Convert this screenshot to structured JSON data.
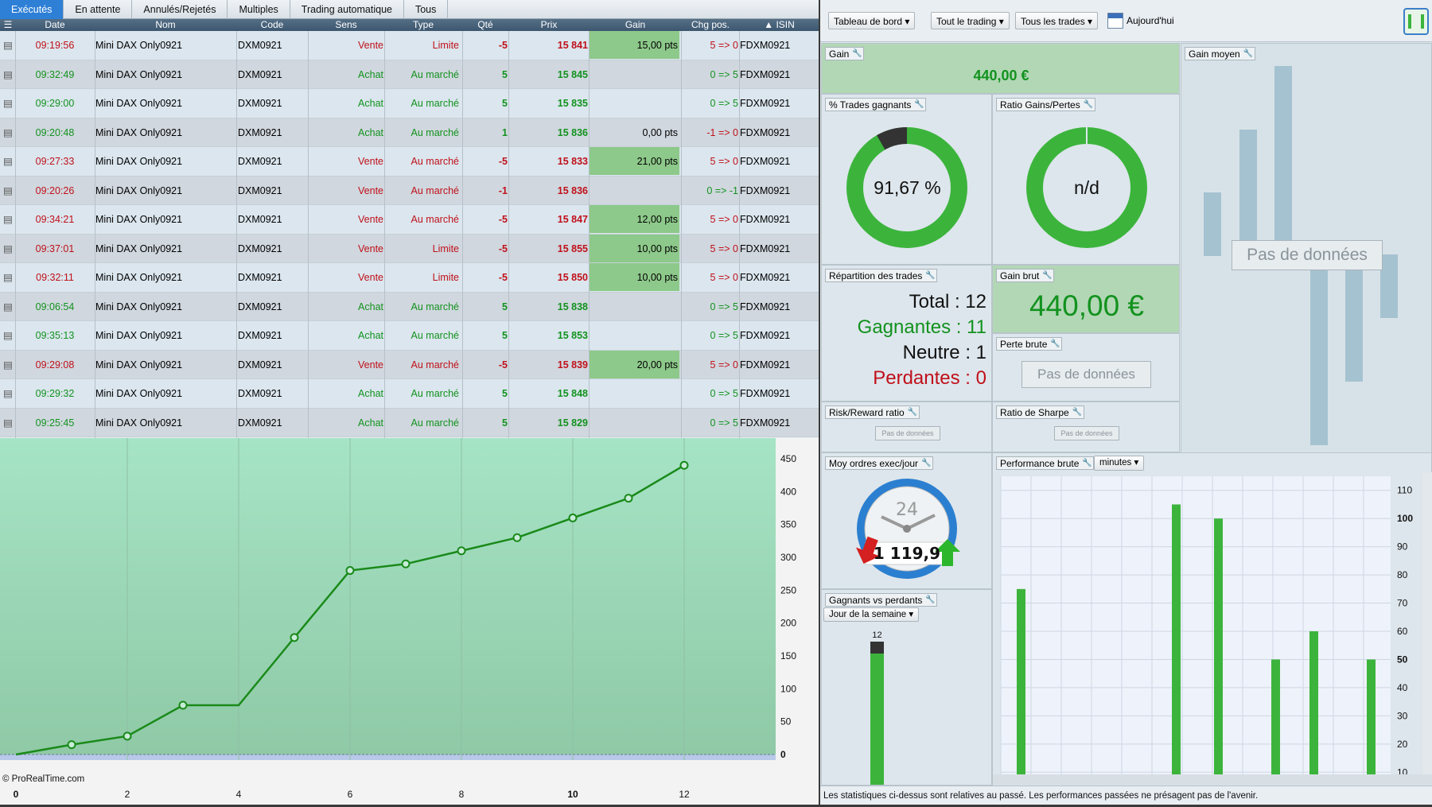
{
  "tabs": [
    "Exécutés",
    "En attente",
    "Annulés/Rejetés",
    "Multiples",
    "Trading automatique",
    "Tous"
  ],
  "columns": {
    "date": "Date",
    "nom": "Nom",
    "code": "Code",
    "sens": "Sens",
    "type": "Type",
    "qte": "Qté",
    "prix": "Prix",
    "gain": "Gain",
    "chg": "Chg pos.",
    "isin": "ISIN"
  },
  "trades": [
    {
      "date": "09:19:56",
      "nom": "Mini DAX Only0921",
      "code": "DXM0921",
      "sens": "Vente",
      "type": "Limite",
      "qte": "-5",
      "prix": "15 841",
      "gain": "15,00 pts",
      "chg": "5 => 0",
      "isin": "FDXM0921"
    },
    {
      "date": "09:32:49",
      "nom": "Mini DAX Only0921",
      "code": "DXM0921",
      "sens": "Achat",
      "type": "Au marché",
      "qte": "5",
      "prix": "15 845",
      "gain": "",
      "chg": "0 => 5",
      "isin": "FDXM0921"
    },
    {
      "date": "09:29:00",
      "nom": "Mini DAX Only0921",
      "code": "DXM0921",
      "sens": "Achat",
      "type": "Au marché",
      "qte": "5",
      "prix": "15 835",
      "gain": "",
      "chg": "0 => 5",
      "isin": "FDXM0921"
    },
    {
      "date": "09:20:48",
      "nom": "Mini DAX Only0921",
      "code": "DXM0921",
      "sens": "Achat",
      "type": "Au marché",
      "qte": "1",
      "prix": "15 836",
      "gain": "0,00 pts",
      "chg": "-1 => 0",
      "isin": "FDXM0921"
    },
    {
      "date": "09:27:33",
      "nom": "Mini DAX Only0921",
      "code": "DXM0921",
      "sens": "Vente",
      "type": "Au marché",
      "qte": "-5",
      "prix": "15 833",
      "gain": "21,00 pts",
      "chg": "5 => 0",
      "isin": "FDXM0921"
    },
    {
      "date": "09:20:26",
      "nom": "Mini DAX Only0921",
      "code": "DXM0921",
      "sens": "Vente",
      "type": "Au marché",
      "qte": "-1",
      "prix": "15 836",
      "gain": "",
      "chg": "0 => -1",
      "isin": "FDXM0921"
    },
    {
      "date": "09:34:21",
      "nom": "Mini DAX Only0921",
      "code": "DXM0921",
      "sens": "Vente",
      "type": "Au marché",
      "qte": "-5",
      "prix": "15 847",
      "gain": "12,00 pts",
      "chg": "5 => 0",
      "isin": "FDXM0921"
    },
    {
      "date": "09:37:01",
      "nom": "Mini DAX Only0921",
      "code": "DXM0921",
      "sens": "Vente",
      "type": "Limite",
      "qte": "-5",
      "prix": "15 855",
      "gain": "10,00 pts",
      "chg": "5 => 0",
      "isin": "FDXM0921"
    },
    {
      "date": "09:32:11",
      "nom": "Mini DAX Only0921",
      "code": "DXM0921",
      "sens": "Vente",
      "type": "Limite",
      "qte": "-5",
      "prix": "15 850",
      "gain": "10,00 pts",
      "chg": "5 => 0",
      "isin": "FDXM0921"
    },
    {
      "date": "09:06:54",
      "nom": "Mini DAX Only0921",
      "code": "DXM0921",
      "sens": "Achat",
      "type": "Au marché",
      "qte": "5",
      "prix": "15 838",
      "gain": "",
      "chg": "0 => 5",
      "isin": "FDXM0921"
    },
    {
      "date": "09:35:13",
      "nom": "Mini DAX Only0921",
      "code": "DXM0921",
      "sens": "Achat",
      "type": "Au marché",
      "qte": "5",
      "prix": "15 853",
      "gain": "",
      "chg": "0 => 5",
      "isin": "FDXM0921"
    },
    {
      "date": "09:29:08",
      "nom": "Mini DAX Only0921",
      "code": "DXM0921",
      "sens": "Vente",
      "type": "Au marché",
      "qte": "-5",
      "prix": "15 839",
      "gain": "20,00 pts",
      "chg": "5 => 0",
      "isin": "FDXM0921"
    },
    {
      "date": "09:29:32",
      "nom": "Mini DAX Only0921",
      "code": "DXM0921",
      "sens": "Achat",
      "type": "Au marché",
      "qte": "5",
      "prix": "15 848",
      "gain": "",
      "chg": "0 => 5",
      "isin": "FDXM0921"
    },
    {
      "date": "09:25:45",
      "nom": "Mini DAX Only0921",
      "code": "DXM0921",
      "sens": "Achat",
      "type": "Au marché",
      "qte": "5",
      "prix": "15 829",
      "gain": "",
      "chg": "0 => 5",
      "isin": "FDXM0921"
    }
  ],
  "copyright": "© ProRealTime.com",
  "toolbar": {
    "dashboard": "Tableau de bord",
    "trading": "Tout le trading",
    "trades": "Tous les trades",
    "today": "Aujourd'hui"
  },
  "panels": {
    "gain": {
      "title": "Gain",
      "value": "440,00 €"
    },
    "gain_moyen": {
      "title": "Gain moyen",
      "nodata": "Pas de données"
    },
    "pct_gagnants": {
      "title": "% Trades gagnants",
      "value": "91,67 %",
      "fraction": 0.9167
    },
    "ratio_gp": {
      "title": "Ratio Gains/Pertes",
      "value": "n/d"
    },
    "repartition": {
      "title": "Répartition des trades",
      "total": "Total : 12",
      "gagnantes": "Gagnantes : 11",
      "neutre": "Neutre : 1",
      "perdantes": "Perdantes : 0"
    },
    "gain_brut": {
      "title": "Gain brut",
      "value": "440,00 €"
    },
    "perte_brute": {
      "title": "Perte brute",
      "nodata": "Pas de données"
    },
    "risk_reward": {
      "title": "Risk/Reward ratio",
      "nodata": "Pas de données"
    },
    "sharpe": {
      "title": "Ratio de Sharpe",
      "nodata": "Pas de données"
    },
    "moy_ordres": {
      "title": "Moy ordres exec/jour",
      "clock": "24",
      "value": "1 119,9"
    },
    "gvp": {
      "title": "Gagnants vs perdants",
      "select": "Jour de la semaine",
      "bar_label": "12"
    },
    "perf_brute": {
      "title": "Performance brute",
      "select": "minutes"
    }
  },
  "footer": "Les statistiques ci-dessus sont relatives au passé. Les performances passées ne présagent pas de l'avenir.",
  "colors": {
    "accent": "#2e7fd6",
    "green": "#3cb43c",
    "red": "#c0101a",
    "line": "#1a8a1a"
  },
  "chart_data": [
    {
      "type": "line",
      "x": [
        0,
        1,
        2,
        3,
        4,
        5,
        6,
        7,
        8,
        9,
        10,
        11,
        12
      ],
      "values": [
        0,
        15,
        28,
        75,
        75,
        178,
        280,
        290,
        310,
        330,
        360,
        390,
        440
      ],
      "xlim": [
        0,
        14
      ],
      "ylim": [
        0,
        460
      ],
      "xticks": [
        "0",
        "2",
        "4",
        "6",
        "8",
        "10",
        "12"
      ],
      "yticks": [
        "0",
        "50",
        "100",
        "150",
        "200",
        "250",
        "300",
        "350",
        "400",
        "450"
      ]
    },
    {
      "type": "bar",
      "values": [
        75,
        105,
        100,
        50,
        60,
        50
      ],
      "yticks": [
        "10",
        "20",
        "30",
        "40",
        "50",
        "60",
        "70",
        "80",
        "90",
        "100",
        "110"
      ],
      "ylim": [
        5,
        115
      ]
    },
    {
      "type": "bar",
      "categories": [
        "12"
      ],
      "values": [
        12
      ],
      "winners": 11,
      "neutral": 1
    }
  ]
}
